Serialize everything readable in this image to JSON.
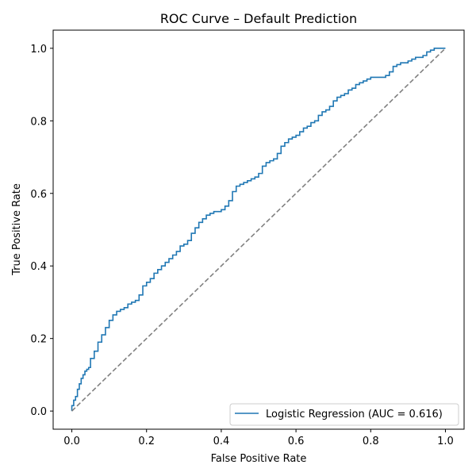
{
  "chart_data": {
    "type": "line",
    "title": "ROC Curve – Default Prediction",
    "xlabel": "False Positive Rate",
    "ylabel": "True Positive Rate",
    "xlim": [
      -0.05,
      1.05
    ],
    "ylim": [
      -0.05,
      1.05
    ],
    "xticks": [
      0.0,
      0.2,
      0.4,
      0.6,
      0.8,
      1.0
    ],
    "xtick_labels": [
      "0.0",
      "0.2",
      "0.4",
      "0.6",
      "0.8",
      "1.0"
    ],
    "yticks": [
      0.0,
      0.2,
      0.4,
      0.6,
      0.8,
      1.0
    ],
    "ytick_labels": [
      "0.0",
      "0.2",
      "0.4",
      "0.6",
      "0.8",
      "1.0"
    ],
    "grid": false,
    "legend_position": "lower-right",
    "series": [
      {
        "name": "Logistic Regression (AUC = 0.616)",
        "color": "#1f77b4",
        "style": "step",
        "x": [
          0.0,
          0.005,
          0.01,
          0.015,
          0.02,
          0.025,
          0.03,
          0.035,
          0.04,
          0.045,
          0.05,
          0.06,
          0.07,
          0.08,
          0.09,
          0.1,
          0.11,
          0.12,
          0.13,
          0.14,
          0.15,
          0.16,
          0.17,
          0.18,
          0.19,
          0.2,
          0.21,
          0.22,
          0.23,
          0.24,
          0.25,
          0.26,
          0.27,
          0.28,
          0.29,
          0.3,
          0.31,
          0.32,
          0.33,
          0.34,
          0.35,
          0.36,
          0.37,
          0.38,
          0.39,
          0.4,
          0.41,
          0.42,
          0.43,
          0.44,
          0.45,
          0.46,
          0.47,
          0.48,
          0.49,
          0.5,
          0.51,
          0.52,
          0.53,
          0.54,
          0.55,
          0.56,
          0.57,
          0.58,
          0.59,
          0.6,
          0.61,
          0.62,
          0.63,
          0.64,
          0.65,
          0.66,
          0.67,
          0.68,
          0.69,
          0.7,
          0.71,
          0.72,
          0.73,
          0.74,
          0.75,
          0.76,
          0.77,
          0.78,
          0.79,
          0.8,
          0.81,
          0.82,
          0.83,
          0.84,
          0.85,
          0.86,
          0.87,
          0.88,
          0.89,
          0.9,
          0.91,
          0.92,
          0.93,
          0.94,
          0.95,
          0.96,
          0.97,
          0.98,
          0.99,
          1.0
        ],
        "y": [
          0.0,
          0.015,
          0.03,
          0.04,
          0.06,
          0.075,
          0.09,
          0.1,
          0.11,
          0.115,
          0.12,
          0.145,
          0.165,
          0.19,
          0.21,
          0.23,
          0.25,
          0.265,
          0.275,
          0.28,
          0.285,
          0.295,
          0.3,
          0.305,
          0.32,
          0.345,
          0.355,
          0.365,
          0.38,
          0.39,
          0.4,
          0.41,
          0.42,
          0.43,
          0.44,
          0.455,
          0.46,
          0.47,
          0.49,
          0.505,
          0.52,
          0.53,
          0.54,
          0.545,
          0.55,
          0.55,
          0.555,
          0.565,
          0.58,
          0.605,
          0.62,
          0.625,
          0.63,
          0.635,
          0.64,
          0.645,
          0.655,
          0.675,
          0.685,
          0.69,
          0.695,
          0.71,
          0.73,
          0.74,
          0.75,
          0.755,
          0.76,
          0.77,
          0.78,
          0.785,
          0.795,
          0.8,
          0.815,
          0.825,
          0.83,
          0.84,
          0.855,
          0.865,
          0.87,
          0.875,
          0.885,
          0.89,
          0.9,
          0.905,
          0.91,
          0.915,
          0.92,
          0.92,
          0.92,
          0.92,
          0.925,
          0.935,
          0.95,
          0.955,
          0.96,
          0.96,
          0.965,
          0.97,
          0.975,
          0.975,
          0.98,
          0.99,
          0.995,
          1.0,
          1.0,
          1.0
        ]
      },
      {
        "color": "#808080",
        "style": "dashed",
        "x": [
          0.0,
          1.0
        ],
        "y": [
          0.0,
          1.0
        ]
      }
    ]
  }
}
